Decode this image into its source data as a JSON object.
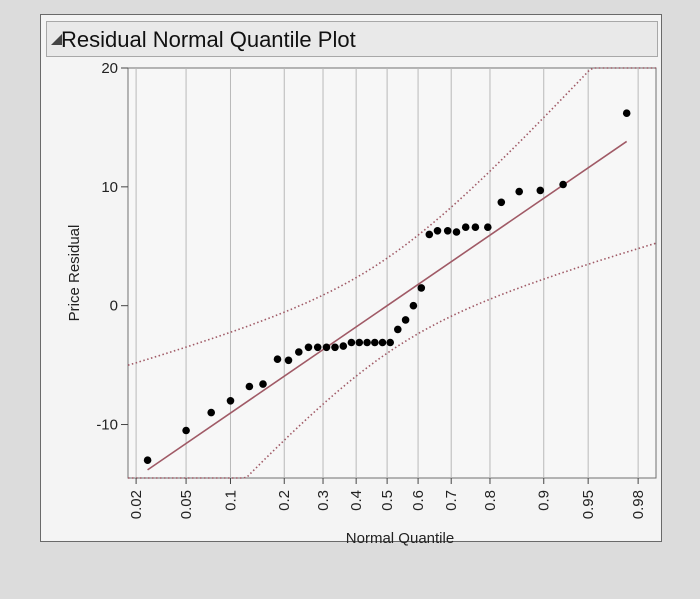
{
  "panel": {
    "title": "Residual Normal Quantile Plot"
  },
  "chart_data": {
    "type": "scatter",
    "title": "Residual Normal Quantile Plot",
    "xlabel": "Normal Quantile",
    "ylabel": "Price Residual",
    "ylim": [
      -14.5,
      20
    ],
    "xlim_z": [
      -2.12,
      2.2
    ],
    "grid": "vertical lines at probability ticks",
    "x_axis_scale": "normal probability",
    "y_ticks": [
      20,
      10,
      0,
      -10
    ],
    "x_ticks": [
      0.02,
      0.05,
      0.1,
      0.2,
      0.3,
      0.4,
      0.5,
      0.6,
      0.7,
      0.8,
      0.9,
      0.95,
      0.98
    ],
    "x_tick_labels": [
      "0.02",
      "0.05",
      "0.1",
      "0.2",
      "0.3",
      "0.4",
      "0.5",
      "0.6",
      "0.7",
      "0.8",
      "0.9",
      "0.95",
      "0.98"
    ],
    "series": [
      {
        "values": [
          {
            "x": 0.025,
            "y": -13.0
          },
          {
            "x": 0.05,
            "y": -10.5
          },
          {
            "x": 0.075,
            "y": -9.0
          },
          {
            "x": 0.1,
            "y": -8.0
          },
          {
            "x": 0.13,
            "y": -6.8
          },
          {
            "x": 0.155,
            "y": -6.6
          },
          {
            "x": 0.185,
            "y": -4.5
          },
          {
            "x": 0.21,
            "y": -4.6
          },
          {
            "x": 0.235,
            "y": -3.9
          },
          {
            "x": 0.26,
            "y": -3.5
          },
          {
            "x": 0.285,
            "y": -3.5
          },
          {
            "x": 0.31,
            "y": -3.5
          },
          {
            "x": 0.335,
            "y": -3.5
          },
          {
            "x": 0.36,
            "y": -3.4
          },
          {
            "x": 0.385,
            "y": -3.1
          },
          {
            "x": 0.41,
            "y": -3.1
          },
          {
            "x": 0.435,
            "y": -3.1
          },
          {
            "x": 0.46,
            "y": -3.1
          },
          {
            "x": 0.485,
            "y": -3.1
          },
          {
            "x": 0.51,
            "y": -3.1
          },
          {
            "x": 0.535,
            "y": -2.0
          },
          {
            "x": 0.56,
            "y": -1.2
          },
          {
            "x": 0.585,
            "y": 0.0
          },
          {
            "x": 0.61,
            "y": 1.5
          },
          {
            "x": 0.635,
            "y": 6.0
          },
          {
            "x": 0.66,
            "y": 6.3
          },
          {
            "x": 0.69,
            "y": 6.3
          },
          {
            "x": 0.715,
            "y": 6.2
          },
          {
            "x": 0.74,
            "y": 6.6
          },
          {
            "x": 0.765,
            "y": 6.6
          },
          {
            "x": 0.795,
            "y": 6.6
          },
          {
            "x": 0.825,
            "y": 8.7
          },
          {
            "x": 0.86,
            "y": 9.6
          },
          {
            "x": 0.895,
            "y": 9.7
          },
          {
            "x": 0.925,
            "y": 10.2
          },
          {
            "x": 0.975,
            "y": 16.2
          }
        ]
      }
    ],
    "reference_line": {
      "intercept": 0,
      "slope_per_z": 7.05
    },
    "confidence_band_halfwidth": 4.0,
    "colors": {
      "points": "#000000",
      "reference_line": "#a05a66",
      "confidence_band": "#a05a66",
      "grid": "#b9b9b9"
    }
  }
}
